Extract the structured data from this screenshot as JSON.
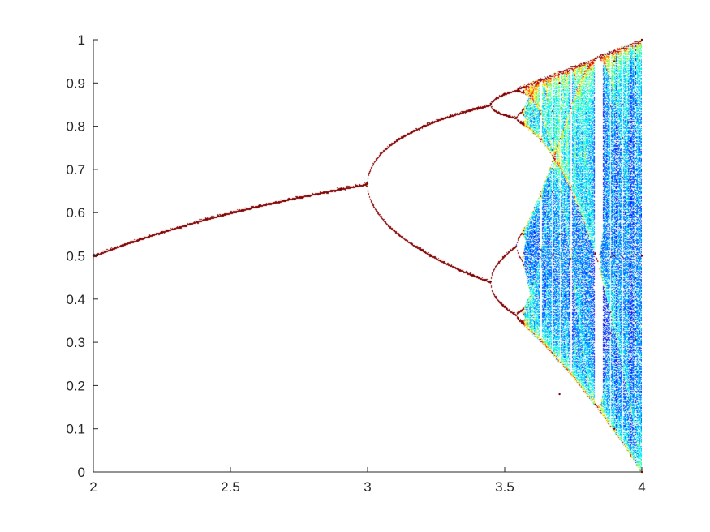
{
  "chart_data": {
    "type": "scatter",
    "title": "",
    "xlabel": "",
    "ylabel": "",
    "xlim": [
      2,
      4
    ],
    "ylim": [
      0,
      1
    ],
    "grid": false,
    "x_ticks": [
      2,
      2.5,
      3,
      3.5,
      4
    ],
    "x_tick_labels": [
      "2",
      "2.5",
      "3",
      "3.5",
      "4"
    ],
    "y_ticks": [
      0,
      0.1,
      0.2,
      0.3,
      0.4,
      0.5,
      0.6,
      0.7,
      0.8,
      0.9,
      1
    ],
    "y_tick_labels": [
      "0",
      "0.1",
      "0.2",
      "0.3",
      "0.4",
      "0.5",
      "0.6",
      "0.7",
      "0.8",
      "0.9",
      "1"
    ],
    "map": "logistic x(n+1) = r*x(n)*(1-x(n))",
    "r_range": [
      2,
      4
    ],
    "colormap": [
      "#00008f",
      "#0000ff",
      "#0080ff",
      "#00ffff",
      "#80ff80",
      "#ffff00",
      "#ff8000",
      "#ff0000",
      "#800000"
    ],
    "series": [
      {
        "points": [
          [
            2.0,
            0.5
          ],
          [
            2.5,
            0.6
          ],
          [
            2.9,
            0.655
          ],
          [
            3.0,
            0.667
          ],
          [
            3.2,
            0.513
          ],
          [
            3.2,
            0.799
          ],
          [
            3.4,
            0.452
          ],
          [
            3.4,
            0.842
          ],
          [
            3.449,
            0.44
          ],
          [
            3.449,
            0.852
          ],
          [
            3.5,
            0.383
          ],
          [
            3.5,
            0.501
          ],
          [
            3.5,
            0.827
          ],
          [
            3.5,
            0.875
          ],
          [
            3.55,
            0.355
          ],
          [
            3.55,
            0.541
          ],
          [
            3.55,
            0.813
          ],
          [
            3.55,
            0.887
          ],
          [
            3.7,
            0.18
          ],
          [
            3.7,
            0.55
          ],
          [
            3.7,
            0.9
          ],
          [
            3.83,
            0.156
          ],
          [
            3.83,
            0.505
          ],
          [
            3.83,
            0.957
          ],
          [
            3.9,
            0.1
          ],
          [
            3.9,
            0.5
          ],
          [
            3.9,
            0.95
          ],
          [
            4.0,
            0.0
          ],
          [
            4.0,
            0.5
          ],
          [
            4.0,
            1.0
          ]
        ]
      }
    ]
  }
}
